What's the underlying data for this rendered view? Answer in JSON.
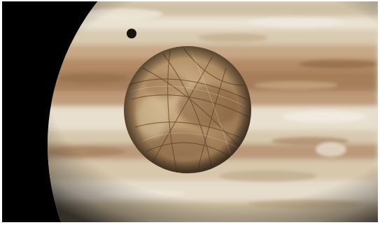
{
  "scene": {
    "background": "#000000",
    "frame": "#ffffff",
    "subjects": [
      "planet",
      "moon",
      "moon-shadow"
    ],
    "colors": {
      "planet_cream": "#e6dac4",
      "planet_band_tan": "#b9906a",
      "planet_band_brown": "#9a7452",
      "moon_base": "#c9b08a",
      "moon_dark": "#8a6440",
      "moon_lineae": "#6b4a2e"
    }
  }
}
